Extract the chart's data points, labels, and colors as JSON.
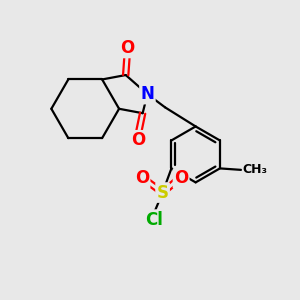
{
  "background_color": "#e8e8e8",
  "atom_colors": {
    "C": "#000000",
    "N": "#0000ff",
    "O": "#ff0000",
    "S": "#cccc00",
    "Cl": "#00aa00"
  },
  "bond_color": "#000000",
  "line_width": 1.6,
  "figsize": [
    3.0,
    3.0
  ],
  "dpi": 100
}
